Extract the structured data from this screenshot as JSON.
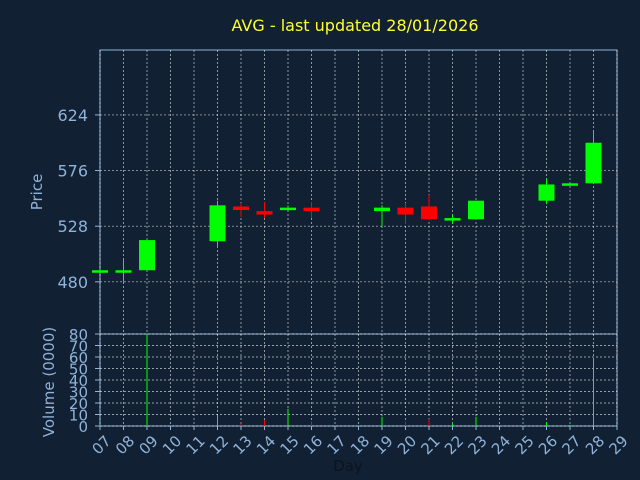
{
  "chart_data": [
    {
      "type": "candlestick",
      "title": "AVG - last updated 28/01/2026",
      "ylabel": "Price",
      "xlabel": "Day",
      "ylim": [
        435,
        680
      ],
      "yticks": [
        480,
        528,
        576,
        624
      ],
      "xlim": [
        7,
        29
      ],
      "grid": true,
      "colors": {
        "up": "#00ff00",
        "down": "#ff0000",
        "background": "#112033",
        "grid": "#ffffff",
        "tick_text": "#8fb3d9",
        "title": "#ffff33"
      },
      "candles": [
        {
          "day": 7,
          "open": 490,
          "high": 490,
          "low": 489,
          "close": 490
        },
        {
          "day": 8,
          "open": 489,
          "high": 500,
          "low": 480,
          "close": 490
        },
        {
          "day": 9,
          "open": 490,
          "high": 516,
          "low": 490,
          "close": 516
        },
        {
          "day": 12,
          "open": 515,
          "high": 550,
          "low": 510,
          "close": 546
        },
        {
          "day": 13,
          "open": 545,
          "high": 548,
          "low": 536,
          "close": 542
        },
        {
          "day": 14,
          "open": 541,
          "high": 549,
          "low": 535,
          "close": 538
        },
        {
          "day": 15,
          "open": 542,
          "high": 546,
          "low": 541,
          "close": 544
        },
        {
          "day": 16,
          "open": 544,
          "high": 549,
          "low": 535,
          "close": 541
        },
        {
          "day": 19,
          "open": 541,
          "high": 546,
          "low": 528,
          "close": 544
        },
        {
          "day": 20,
          "open": 544,
          "high": 548,
          "low": 530,
          "close": 538
        },
        {
          "day": 21,
          "open": 545,
          "high": 555,
          "low": 533,
          "close": 534
        },
        {
          "day": 22,
          "open": 534,
          "high": 538,
          "low": 530,
          "close": 535
        },
        {
          "day": 23,
          "open": 534,
          "high": 550,
          "low": 534,
          "close": 550
        },
        {
          "day": 26,
          "open": 550,
          "high": 569,
          "low": 547,
          "close": 564
        },
        {
          "day": 27,
          "open": 563,
          "high": 566,
          "low": 563,
          "close": 565
        },
        {
          "day": 28,
          "open": 565,
          "high": 610,
          "low": 565,
          "close": 600
        }
      ]
    },
    {
      "type": "bar",
      "ylabel": "Volume (0000)",
      "xlabel": "Day",
      "ylim": [
        0,
        80
      ],
      "yticks": [
        0,
        10,
        20,
        30,
        40,
        50,
        60,
        70,
        80
      ],
      "xlim": [
        7,
        29
      ],
      "categories": [
        "07",
        "08",
        "09",
        "10",
        "11",
        "12",
        "13",
        "14",
        "15",
        "16",
        "17",
        "18",
        "19",
        "20",
        "21",
        "22",
        "23",
        "24",
        "25",
        "26",
        "27",
        "28",
        "29"
      ],
      "bars": [
        {
          "day": 7,
          "value": 0.5,
          "color": "#00ff00"
        },
        {
          "day": 8,
          "value": 0.5,
          "color": "#00ff00"
        },
        {
          "day": 9,
          "value": 80,
          "color": "#00ff00"
        },
        {
          "day": 12,
          "value": 9,
          "color": "#00ff00"
        },
        {
          "day": 13,
          "value": 2,
          "color": "#ff0000"
        },
        {
          "day": 14,
          "value": 5,
          "color": "#ff0000"
        },
        {
          "day": 15,
          "value": 15,
          "color": "#00ff00"
        },
        {
          "day": 16,
          "value": 4,
          "color": "#ff0000"
        },
        {
          "day": 19,
          "value": 8,
          "color": "#00ff00"
        },
        {
          "day": 20,
          "value": 4,
          "color": "#ff0000"
        },
        {
          "day": 21,
          "value": 6,
          "color": "#ff0000"
        },
        {
          "day": 22,
          "value": 2,
          "color": "#00ff00"
        },
        {
          "day": 23,
          "value": 8,
          "color": "#00ff00"
        },
        {
          "day": 26,
          "value": 3,
          "color": "#00ff00"
        },
        {
          "day": 27,
          "value": 1,
          "color": "#00ff00"
        },
        {
          "day": 28,
          "value": 58,
          "color": "#00ff00"
        }
      ]
    }
  ]
}
